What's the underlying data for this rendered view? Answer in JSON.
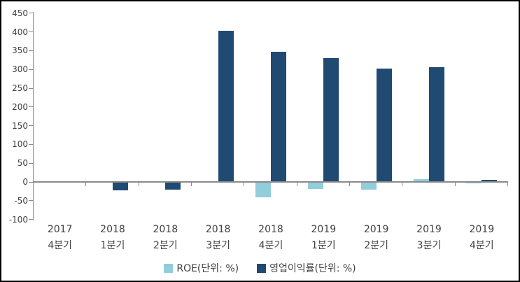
{
  "chart_data": {
    "type": "bar",
    "title": "",
    "xlabel": "",
    "ylabel": "",
    "categories": [
      {
        "year": "2017",
        "quarter": "4분기"
      },
      {
        "year": "2018",
        "quarter": "1분기"
      },
      {
        "year": "2018",
        "quarter": "2분기"
      },
      {
        "year": "2018",
        "quarter": "3분기"
      },
      {
        "year": "2018",
        "quarter": "4분기"
      },
      {
        "year": "2019",
        "quarter": "1분기"
      },
      {
        "year": "2019",
        "quarter": "2분기"
      },
      {
        "year": "2019",
        "quarter": "3분기"
      },
      {
        "year": "2019",
        "quarter": "4분기"
      }
    ],
    "series": [
      {
        "name": "ROE(단위: %)",
        "key": "roe",
        "color": "#92CDDC",
        "values": [
          0,
          0,
          0,
          0,
          -40,
          -17,
          -18,
          5,
          -2
        ]
      },
      {
        "name": "영업이익률(단위: %)",
        "key": "op-margin",
        "color": "#214A72",
        "values": [
          0,
          -21,
          -19,
          402,
          346,
          328,
          300,
          304,
          3
        ]
      }
    ],
    "ylim": [
      -100,
      450
    ],
    "ytick_step": 50,
    "yticks": [
      450,
      400,
      350,
      300,
      250,
      200,
      150,
      100,
      50,
      0,
      -50,
      -100
    ],
    "grid": false,
    "legend_position": "bottom-center",
    "colors": {
      "axis": "#8a8a8a",
      "label": "#404040",
      "background": "#ffffff",
      "frame_border": "#000000"
    }
  }
}
